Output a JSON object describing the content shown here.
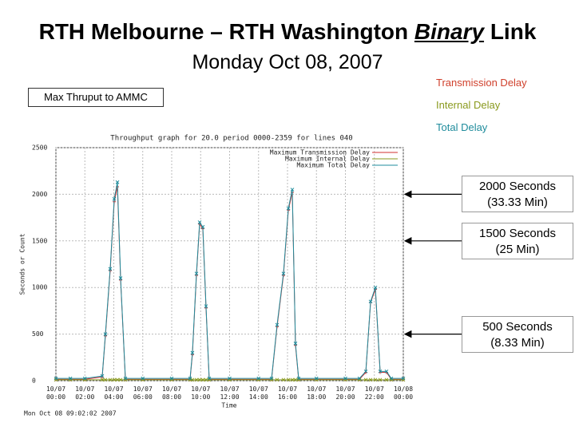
{
  "chart_data": {
    "type": "line",
    "title_parts": [
      "RTH Melbourne – RTH Washington ",
      "Binary",
      " Link"
    ],
    "subtitle": "Monday Oct 08, 2007",
    "box_note": "Max Thruput to AMMC",
    "chart_title": "Throughput graph for 20.0 period 0000-2359 for lines 040",
    "ylabel": "Seconds or Count",
    "xlabel": "Time",
    "footer": "Mon Oct 08 09:02:02 2007",
    "annotations": [
      {
        "text": "Transmission Delay",
        "color": "#d0402c"
      },
      {
        "text": "Internal Delay",
        "color": "#8a9a1e"
      },
      {
        "text": "Total Delay",
        "color": "#1f8c9c"
      }
    ],
    "callouts": [
      {
        "text": "2000 Seconds\n(33.33 Min)",
        "value": 2000
      },
      {
        "text": "1500 Seconds\n(25 Min)",
        "value": 1500
      },
      {
        "text": "500 Seconds\n(8.33 Min)",
        "value": 500
      }
    ],
    "x": [
      0,
      1,
      2,
      3.2,
      3.42,
      3.75,
      4.03,
      4.25,
      4.47,
      4.8,
      6,
      8,
      9.27,
      9.43,
      9.71,
      9.93,
      10.15,
      10.37,
      10.59,
      12,
      14,
      14.9,
      15.28,
      15.72,
      16.06,
      16.33,
      16.55,
      16.77,
      18,
      20,
      20.97,
      21.41,
      21.74,
      22.07,
      22.4,
      22.84,
      23.17,
      24
    ],
    "series": [
      {
        "name": "Maximum Transmission Delay",
        "color": "#d03030",
        "values": [
          15,
          15,
          15,
          40,
          480,
          1180,
          1920,
          2080,
          1080,
          15,
          15,
          15,
          15,
          280,
          1130,
          1680,
          1630,
          780,
          15,
          15,
          15,
          15,
          580,
          1130,
          1830,
          2020,
          380,
          15,
          15,
          15,
          15,
          90,
          840,
          980,
          90,
          90,
          15,
          15
        ]
      },
      {
        "name": "Maximum Internal Delay",
        "color": "#8a9a1e",
        "values": [
          10,
          10,
          10,
          10,
          10,
          10,
          10,
          10,
          10,
          10,
          10,
          10,
          10,
          10,
          10,
          10,
          10,
          10,
          10,
          10,
          10,
          10,
          10,
          10,
          10,
          10,
          10,
          10,
          10,
          10,
          10,
          10,
          10,
          10,
          10,
          10,
          10,
          10
        ]
      },
      {
        "name": "Maximum Total Delay",
        "color": "#1f8c9c",
        "values": [
          25,
          25,
          25,
          50,
          500,
          1200,
          1950,
          2130,
          1100,
          25,
          25,
          25,
          25,
          300,
          1150,
          1700,
          1650,
          800,
          25,
          25,
          25,
          25,
          600,
          1150,
          1850,
          2050,
          400,
          25,
          25,
          25,
          25,
          100,
          850,
          1000,
          100,
          100,
          25,
          25
        ]
      }
    ],
    "xlim": [
      0,
      24
    ],
    "xticks": [
      {
        "value": 0,
        "label": "10/07\n00:00"
      },
      {
        "value": 2,
        "label": "10/07\n02:00"
      },
      {
        "value": 4,
        "label": "10/07\n04:00"
      },
      {
        "value": 6,
        "label": "10/07\n06:00"
      },
      {
        "value": 8,
        "label": "10/07\n08:00"
      },
      {
        "value": 10,
        "label": "10/07\n10:00"
      },
      {
        "value": 12,
        "label": "10/07\n12:00"
      },
      {
        "value": 14,
        "label": "10/07\n14:00"
      },
      {
        "value": 16,
        "label": "10/07\n16:00"
      },
      {
        "value": 18,
        "label": "10/07\n18:00"
      },
      {
        "value": 20,
        "label": "10/07\n20:00"
      },
      {
        "value": 22,
        "label": "10/07\n22:00"
      },
      {
        "value": 24,
        "label": "10/08\n00:00"
      }
    ],
    "ylim": [
      0,
      2500
    ],
    "yticks": [
      0,
      500,
      1000,
      1500,
      2000,
      2500
    ],
    "grid": true
  }
}
